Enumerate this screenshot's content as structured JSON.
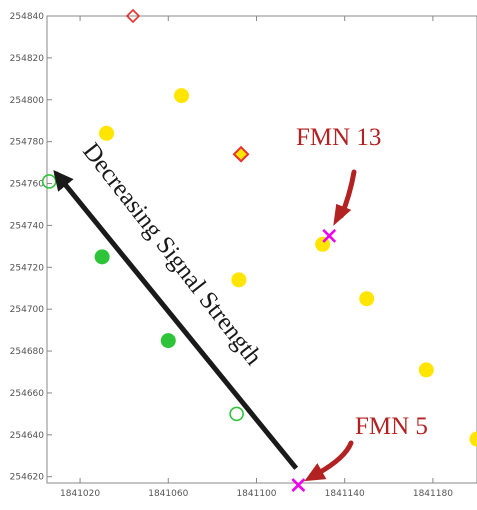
{
  "chart_data": {
    "type": "scatter",
    "xlim": [
      1841005,
      1841200
    ],
    "ylim": [
      254617,
      254840
    ],
    "grid": false,
    "x_ticks": [
      {
        "value": 1841020,
        "label": "1841020"
      },
      {
        "value": 1841060,
        "label": "1841060"
      },
      {
        "value": 1841100,
        "label": "1841100"
      },
      {
        "value": 1841140,
        "label": "1841140"
      },
      {
        "value": 1841180,
        "label": "1841180"
      }
    ],
    "y_ticks": [
      {
        "value": 254620,
        "label": "254620"
      },
      {
        "value": 254640,
        "label": "254640"
      },
      {
        "value": 254660,
        "label": "254660"
      },
      {
        "value": 254680,
        "label": "254680"
      },
      {
        "value": 254700,
        "label": "254700"
      },
      {
        "value": 254720,
        "label": "254720"
      },
      {
        "value": 254740,
        "label": "254740"
      },
      {
        "value": 254760,
        "label": "254760"
      },
      {
        "value": 254780,
        "label": "254780"
      },
      {
        "value": 254800,
        "label": "254800"
      },
      {
        "value": 254820,
        "label": "254820"
      },
      {
        "value": 254840,
        "label": "254840"
      }
    ],
    "series": [
      {
        "marker": "filled-circle",
        "color": "#ffe500",
        "points": [
          [
            1841032,
            254784
          ],
          [
            1841066,
            254802
          ],
          [
            1841092,
            254714
          ],
          [
            1841130,
            254731
          ],
          [
            1841150,
            254705
          ],
          [
            1841177,
            254671
          ],
          [
            1841200,
            254638
          ]
        ]
      },
      {
        "marker": "filled-circle",
        "color": "#2ec43a",
        "points": [
          [
            1841030,
            254725
          ],
          [
            1841060,
            254685
          ]
        ]
      },
      {
        "marker": "open-circle",
        "color": "#2ec43a",
        "points": [
          [
            1841006,
            254761
          ],
          [
            1841091,
            254650
          ]
        ]
      },
      {
        "marker": "open-diamond",
        "color": "#e83030",
        "points": [
          [
            1841044,
            254840
          ]
        ]
      },
      {
        "marker": "filled-diamond",
        "color": "#ffe500",
        "stroke": "#e83030",
        "points": [
          [
            1841093,
            254774
          ]
        ]
      },
      {
        "marker": "cross",
        "color": "#ee00ee",
        "points": [
          [
            1841133,
            254735
          ],
          [
            1841119,
            254616
          ]
        ]
      }
    ],
    "annotations": [
      {
        "text": "FMN 13",
        "color": "#b22222",
        "arrow_to": [
          1841133,
          254735
        ]
      },
      {
        "text": "FMN 5",
        "color": "#b22222",
        "arrow_to": [
          1841119,
          254616
        ]
      },
      {
        "text": "Decreasing Signal Strength",
        "color": "#1a1a1a",
        "arrow_from": [
          1841118,
          254624
        ],
        "arrow_to": [
          1841009,
          254765
        ]
      }
    ]
  }
}
